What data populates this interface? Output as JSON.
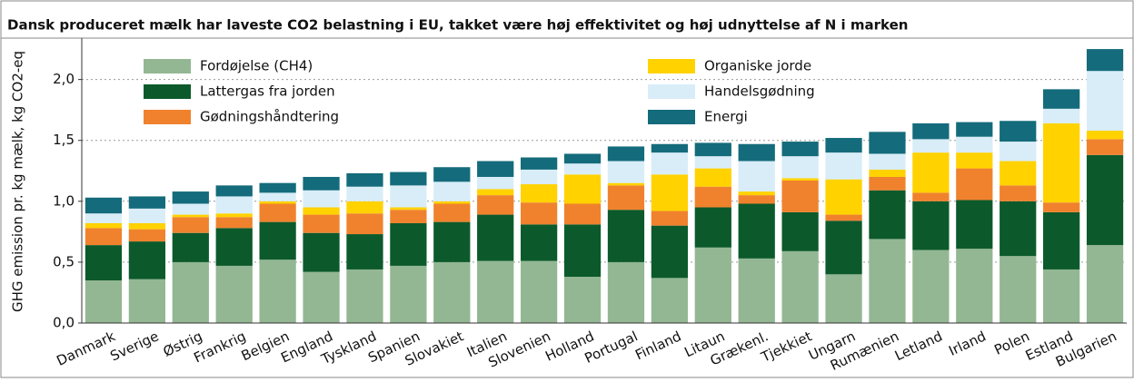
{
  "chart_data": {
    "type": "stacked-bar",
    "title": "Dansk produceret mælk har laveste CO2 belastning i EU, takket være høj effektivitet og høj udnyttelse af N i marken",
    "y_label": "GHG emission pr. kg mælk, kg CO2-eq",
    "categories": [
      "Danmark",
      "Sverige",
      "Østrig",
      "Frankrig",
      "Belgien",
      "England",
      "Tyskland",
      "Spanien",
      "Slovakiet",
      "Italien",
      "Slovenien",
      "Holland",
      "Portugal",
      "Finland",
      "Litaun",
      "Grækenl.",
      "Tjekkiet",
      "Ungarn",
      "Rumænien",
      "Letland",
      "Irland",
      "Polen",
      "Estland",
      "Bulgarien"
    ],
    "series": [
      {
        "name": "Fordøjelse (CH4)",
        "color": "#93b793",
        "values": [
          0.35,
          0.36,
          0.5,
          0.47,
          0.52,
          0.42,
          0.44,
          0.47,
          0.5,
          0.51,
          0.51,
          0.38,
          0.5,
          0.37,
          0.62,
          0.53,
          0.59,
          0.4,
          0.69,
          0.6,
          0.61,
          0.55,
          0.44,
          0.64
        ]
      },
      {
        "name": "Lattergas fra jorden",
        "color": "#0c5a2b",
        "values": [
          0.29,
          0.31,
          0.24,
          0.31,
          0.31,
          0.32,
          0.29,
          0.35,
          0.33,
          0.38,
          0.3,
          0.43,
          0.43,
          0.43,
          0.33,
          0.45,
          0.32,
          0.44,
          0.4,
          0.4,
          0.4,
          0.45,
          0.47,
          0.74
        ]
      },
      {
        "name": "Gødningshåndtering",
        "color": "#f0822d",
        "values": [
          0.14,
          0.1,
          0.13,
          0.09,
          0.15,
          0.15,
          0.17,
          0.11,
          0.15,
          0.16,
          0.18,
          0.17,
          0.2,
          0.12,
          0.17,
          0.07,
          0.26,
          0.05,
          0.11,
          0.07,
          0.26,
          0.13,
          0.08,
          0.13
        ]
      },
      {
        "name": "Organiske jorde",
        "color": "#ffd200",
        "values": [
          0.04,
          0.05,
          0.02,
          0.03,
          0.02,
          0.06,
          0.1,
          0.02,
          0.02,
          0.05,
          0.15,
          0.24,
          0.02,
          0.3,
          0.15,
          0.03,
          0.02,
          0.29,
          0.06,
          0.33,
          0.13,
          0.2,
          0.65,
          0.07
        ]
      },
      {
        "name": "Handelsgødning",
        "color": "#d8edf8",
        "values": [
          0.08,
          0.12,
          0.09,
          0.14,
          0.07,
          0.14,
          0.12,
          0.18,
          0.16,
          0.1,
          0.12,
          0.09,
          0.18,
          0.18,
          0.1,
          0.25,
          0.18,
          0.22,
          0.13,
          0.11,
          0.13,
          0.16,
          0.12,
          0.49
        ]
      },
      {
        "name": "Energi",
        "color": "#146b7b",
        "values": [
          0.13,
          0.1,
          0.1,
          0.09,
          0.08,
          0.11,
          0.11,
          0.11,
          0.12,
          0.13,
          0.1,
          0.08,
          0.12,
          0.07,
          0.11,
          0.14,
          0.12,
          0.12,
          0.18,
          0.13,
          0.12,
          0.17,
          0.16,
          0.18
        ]
      }
    ],
    "ylim": [
      0,
      2.34
    ],
    "yticks": [
      {
        "value": 0,
        "label": "0,0"
      },
      {
        "value": 0.5,
        "label": "0,5"
      },
      {
        "value": 1,
        "label": "1,0"
      },
      {
        "value": 1.5,
        "label": "1,5"
      },
      {
        "value": 2,
        "label": "2,0"
      }
    ],
    "grid": true
  }
}
